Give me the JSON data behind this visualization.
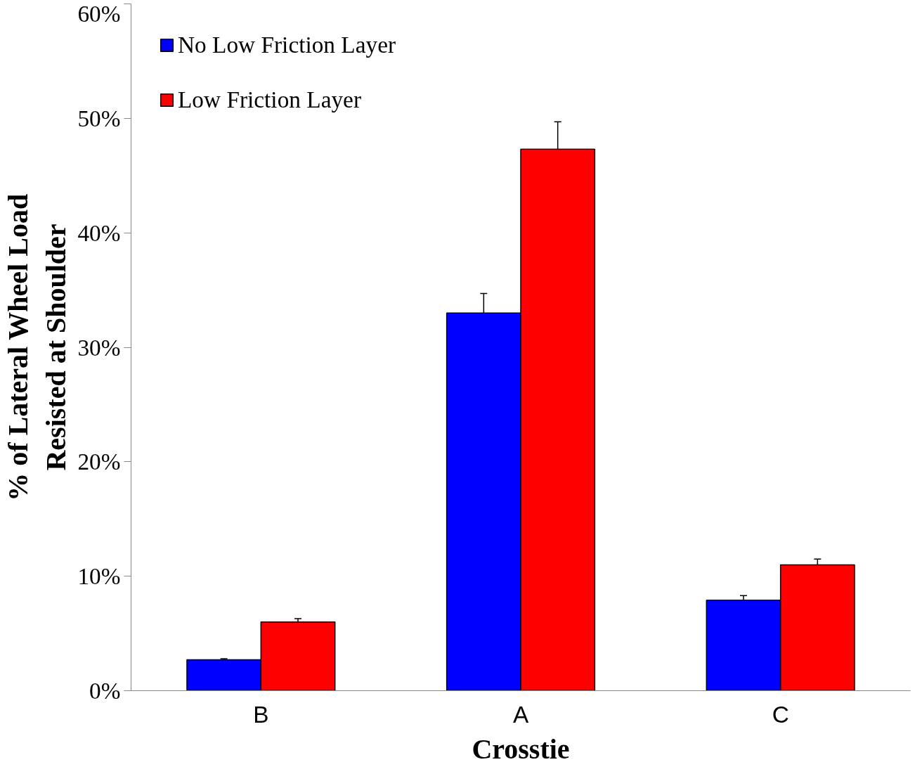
{
  "chart_data": {
    "type": "bar",
    "xlabel": "Crosstie",
    "ylabel": "% of Lateral Wheel Load\nResisted at Shoulder",
    "categories": [
      "B",
      "A",
      "C"
    ],
    "series": [
      {
        "name": "No Low Friction Layer",
        "color": "#0000ff",
        "values": [
          2.7,
          33.0,
          7.9
        ],
        "errors": [
          0.1,
          1.7,
          0.4
        ]
      },
      {
        "name": "Low Friction Layer",
        "color": "#ff0000",
        "values": [
          6.0,
          47.3,
          11.0
        ],
        "errors": [
          0.3,
          2.4,
          0.5
        ]
      }
    ],
    "ylim": [
      0,
      60
    ],
    "yticks": [
      {
        "value": 0,
        "label": "0%"
      },
      {
        "value": 10,
        "label": "10%"
      },
      {
        "value": 20,
        "label": "20%"
      },
      {
        "value": 30,
        "label": "30%"
      },
      {
        "value": 40,
        "label": "40%"
      },
      {
        "value": 50,
        "label": "50%"
      },
      {
        "value": 60,
        "label": "60%"
      }
    ],
    "legend": "top left"
  }
}
